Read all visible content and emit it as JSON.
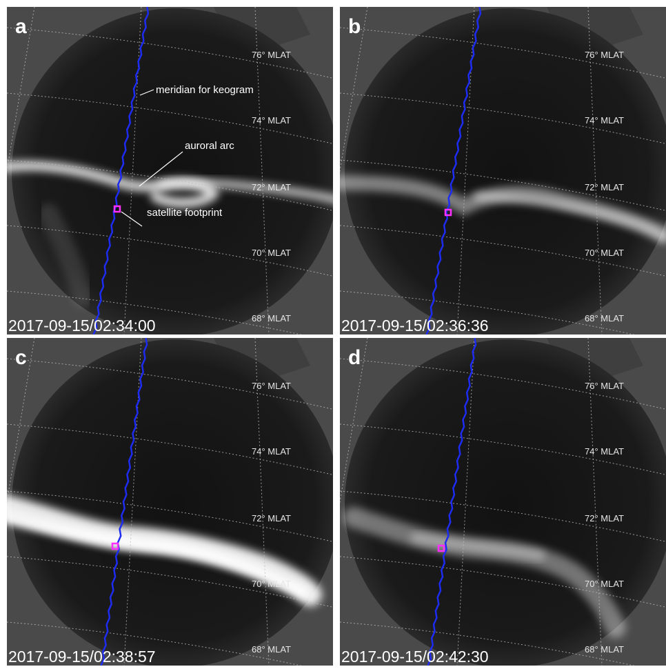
{
  "panels": [
    {
      "label": "a",
      "timestamp": "2017-09-15/02:34:00"
    },
    {
      "label": "b",
      "timestamp": "2017-09-15/02:36:36"
    },
    {
      "label": "c",
      "timestamp": "2017-09-15/02:38:57"
    },
    {
      "label": "d",
      "timestamp": "2017-09-15/02:42:30"
    }
  ],
  "grid_labels": [
    "76° MLAT",
    "74° MLAT",
    "72° MLAT",
    "70° MLAT",
    "68° MLAT"
  ],
  "annotations": [
    "meridian for keogram",
    "auroral arc",
    "satellite footprint"
  ]
}
